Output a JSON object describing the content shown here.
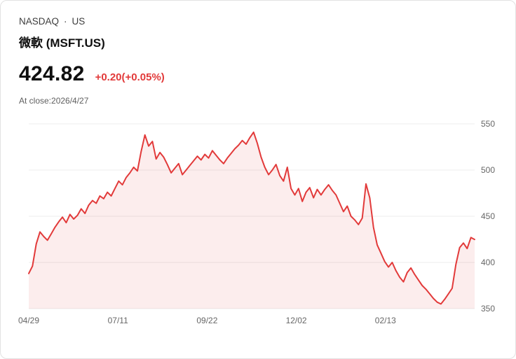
{
  "header": {
    "exchange": "NASDAQ",
    "dot": "·",
    "market": "US",
    "name": "微軟 (MSFT.US)",
    "price": "424.82",
    "change": "+0.20(+0.05%)",
    "close_label": "At close:2026/4/27"
  },
  "colors": {
    "accent_red": "#e23a3a",
    "area_fill": "rgba(226,58,58,0.09)",
    "grid": "#ececec",
    "axis_text": "#666666"
  },
  "chart_data": {
    "type": "area",
    "title": "MSFT.US 1-year price chart",
    "xlabel": "",
    "ylabel": "",
    "ylim": [
      350,
      550
    ],
    "y_ticks": [
      350,
      400,
      450,
      500,
      550
    ],
    "x_labels": [
      "04/29",
      "07/11",
      "09/22",
      "12/02",
      "02/13"
    ],
    "grid": true,
    "legend": false,
    "line_color": "#e23a3a",
    "values": [
      388,
      396,
      420,
      433,
      428,
      424,
      431,
      438,
      444,
      449,
      443,
      452,
      447,
      451,
      458,
      453,
      462,
      467,
      464,
      472,
      469,
      476,
      472,
      480,
      488,
      484,
      492,
      497,
      503,
      499,
      520,
      538,
      526,
      531,
      512,
      519,
      514,
      506,
      497,
      502,
      507,
      495,
      500,
      505,
      510,
      515,
      511,
      517,
      513,
      521,
      516,
      511,
      507,
      513,
      518,
      523,
      527,
      532,
      528,
      535,
      541,
      529,
      514,
      503,
      495,
      500,
      506,
      494,
      488,
      503,
      480,
      473,
      480,
      466,
      476,
      481,
      470,
      479,
      473,
      479,
      484,
      478,
      473,
      464,
      455,
      461,
      450,
      446,
      441,
      448,
      485,
      470,
      438,
      419,
      410,
      401,
      395,
      400,
      391,
      384,
      379,
      389,
      394,
      387,
      381,
      375,
      371,
      366,
      361,
      357,
      355,
      360,
      366,
      372,
      398,
      416,
      421,
      415,
      427,
      424.82
    ]
  }
}
